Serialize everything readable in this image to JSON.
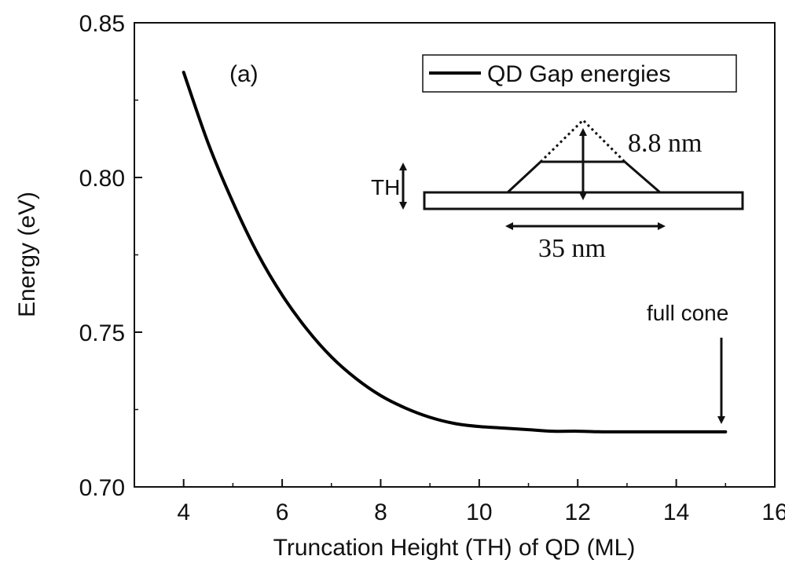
{
  "chart_data": {
    "type": "line",
    "xlabel": "Truncation Height (TH) of QD (ML)",
    "ylabel": "Energy (eV)",
    "xlim": [
      3,
      16
    ],
    "ylim": [
      0.7,
      0.85
    ],
    "xticks": [
      4,
      6,
      8,
      10,
      12,
      14,
      16
    ],
    "xtick_labels": [
      "4",
      "6",
      "8",
      "10",
      "12",
      "14",
      "16"
    ],
    "yticks": [
      0.7,
      0.75,
      0.8,
      0.85
    ],
    "ytick_labels": [
      "0.70",
      "0.75",
      "0.80",
      "0.85"
    ],
    "grid": false,
    "legend_position": "top-right",
    "series": [
      {
        "name": "QD Gap energies",
        "color": "#000000",
        "x": [
          4.0,
          4.5,
          5.0,
          5.5,
          6.0,
          6.5,
          7.0,
          7.5,
          8.0,
          8.5,
          9.0,
          9.5,
          10.0,
          10.5,
          11.0,
          11.5,
          12.0,
          12.5,
          13.0,
          13.5,
          14.0,
          14.5,
          15.0
        ],
        "y": [
          0.834,
          0.811,
          0.792,
          0.7755,
          0.762,
          0.751,
          0.742,
          0.735,
          0.7295,
          0.7255,
          0.7225,
          0.7205,
          0.7195,
          0.719,
          0.7185,
          0.718,
          0.718,
          0.7178,
          0.7178,
          0.7178,
          0.7178,
          0.7178,
          0.7178
        ]
      }
    ],
    "annotations": {
      "panel_label": "(a)",
      "full_cone_label": "full cone",
      "th_label": "TH",
      "height_label": "8.8 nm",
      "width_label": "35 nm"
    }
  }
}
